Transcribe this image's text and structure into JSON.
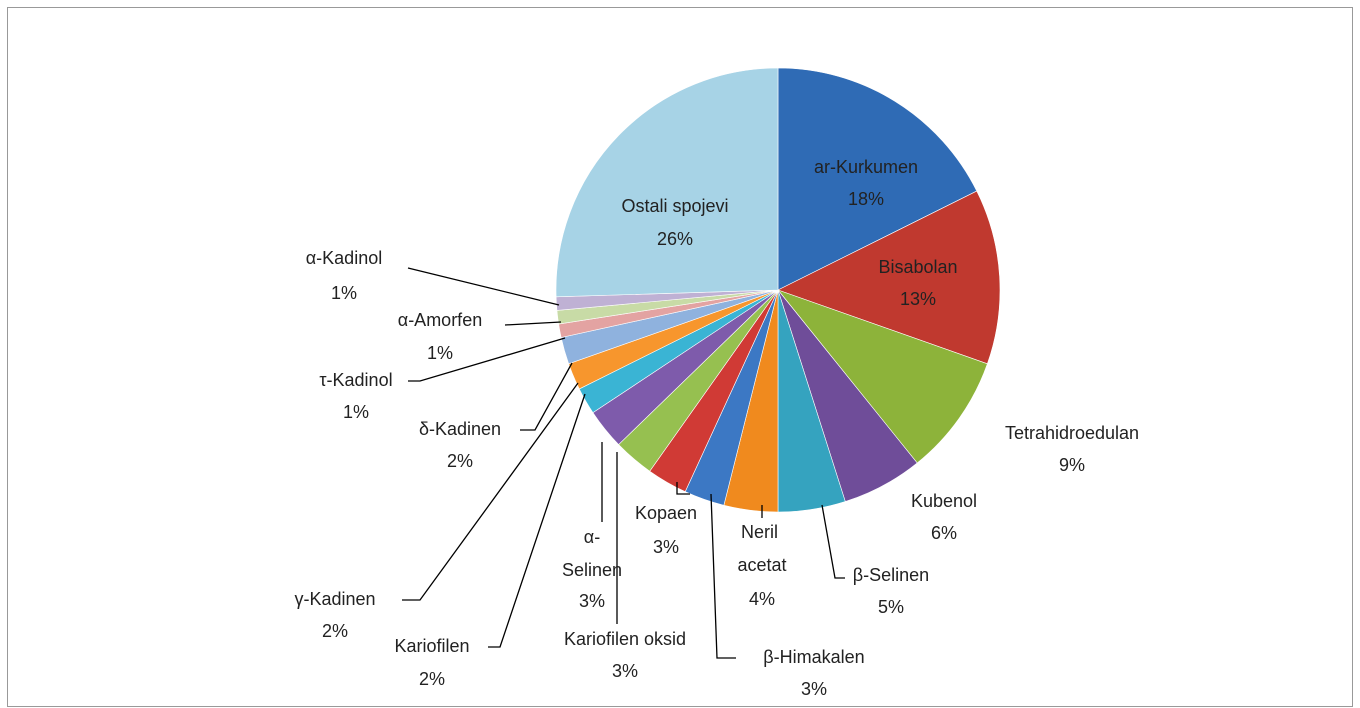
{
  "chart_data": {
    "type": "pie",
    "categories": [
      "ar-Kurkumen",
      "Bisabolan",
      "Tetrahidroedulan",
      "Kubenol",
      "β-Selinen",
      "Neril acetat",
      "β-Himakalen",
      "Kopaen",
      "Kariofilen oksid",
      "α-Selinen",
      "Kariofilen",
      "γ-Kadinen",
      "δ-Kadinen",
      "τ-Kadinol",
      "α-Amorfen",
      "α-Kadinol",
      "Ostali spojevi"
    ],
    "values": [
      18,
      13,
      9,
      6,
      5,
      4,
      3,
      3,
      3,
      3,
      2,
      2,
      2,
      1,
      1,
      1,
      26
    ],
    "value_labels": [
      "18%",
      "13%",
      "9%",
      "6%",
      "5%",
      "4%",
      "3%",
      "3%",
      "3%",
      "3%",
      "2%",
      "2%",
      "2%",
      "1%",
      "1%",
      "1%",
      "26%"
    ],
    "colors": [
      "#2f6bb5",
      "#c0392f",
      "#8db33a",
      "#6f4d99",
      "#35a3bf",
      "#f08a1e",
      "#3c78c4",
      "#d03a35",
      "#96c050",
      "#7e5bab",
      "#3ab4d4",
      "#f7962d",
      "#8fb2de",
      "#e3a3a2",
      "#c8dba6",
      "#bfb1d4",
      "#a7d3e6"
    ]
  }
}
